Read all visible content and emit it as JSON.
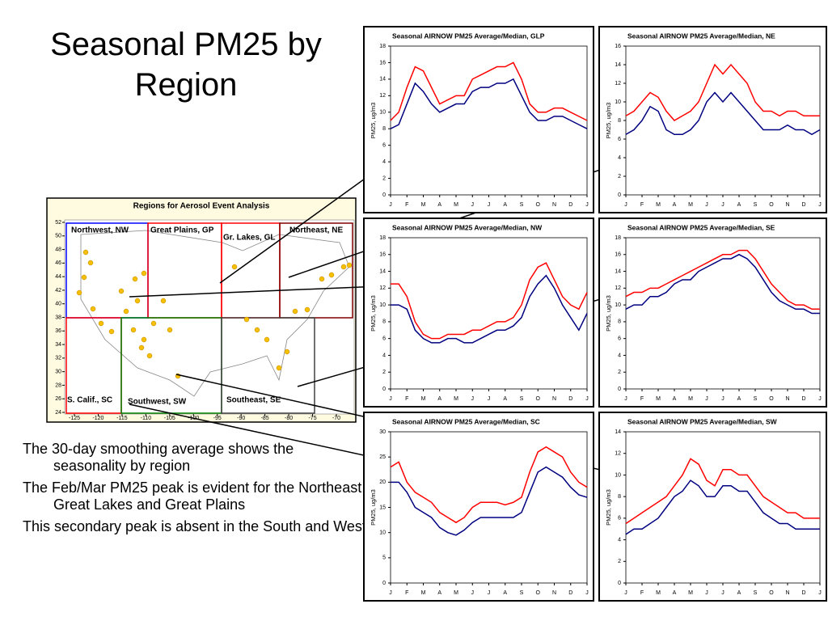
{
  "title": "Seasonal PM25 by Region",
  "bullets": [
    "The 30-day smoothing average shows the seasonality by region",
    "The Feb/Mar PM25 peak is evident for the Northeast, Great Lakes and Great Plains",
    "This secondary peak is absent in the South and West"
  ],
  "map": {
    "title": "Regions for Aerosol Event Analysis",
    "regions": [
      "Northwest, NW",
      "Great Plains, GP",
      "Gr. Lakes, GL",
      "Northeast, NE",
      "S. Calif., SC",
      "Southwest, SW",
      "Southeast, SE"
    ],
    "xticks": [
      -125,
      -120,
      -115,
      -110,
      -105,
      -100,
      -95,
      -90,
      -85,
      -80,
      -75,
      -70
    ],
    "yticks": [
      24,
      26,
      28,
      30,
      32,
      34,
      36,
      38,
      40,
      42,
      44,
      46,
      48,
      50,
      52
    ]
  },
  "chart_data": [
    {
      "type": "line",
      "title": "Seasonal AIRNOW PM25 Average/Median, GLP",
      "ylabel": "PM25, ug/m3",
      "x": [
        0,
        0.5,
        1,
        1.5,
        2,
        2.5,
        3,
        3.5,
        4,
        4.5,
        5,
        5.5,
        6,
        6.5,
        7,
        7.5,
        8,
        8.5,
        9,
        9.5,
        10,
        10.5,
        11,
        11.5,
        12
      ],
      "xlim": [
        0,
        12
      ],
      "ylim": [
        0,
        18
      ],
      "yticks": [
        0,
        2,
        4,
        6,
        8,
        10,
        12,
        14,
        16,
        18
      ],
      "xticks": [
        {
          "value": 0,
          "label": "J"
        },
        {
          "value": 1,
          "label": "F"
        },
        {
          "value": 2,
          "label": "M"
        },
        {
          "value": 3,
          "label": "A"
        },
        {
          "value": 4,
          "label": "M"
        },
        {
          "value": 5,
          "label": "J"
        },
        {
          "value": 6,
          "label": "J"
        },
        {
          "value": 7,
          "label": "A"
        },
        {
          "value": 8,
          "label": "S"
        },
        {
          "value": 9,
          "label": "O"
        },
        {
          "value": 10,
          "label": "N"
        },
        {
          "value": 11,
          "label": "D"
        },
        {
          "value": 12,
          "label": "J"
        }
      ],
      "series": [
        {
          "color": "#ff0000",
          "values": [
            9,
            10,
            13,
            15.5,
            15,
            13,
            11,
            11.5,
            12,
            12,
            14,
            14.5,
            15,
            15.5,
            15.5,
            16,
            14,
            11,
            10,
            10,
            10.5,
            10.5,
            10,
            9.5,
            9
          ]
        },
        {
          "color": "#000080",
          "values": [
            8,
            8.5,
            11,
            13.5,
            12.5,
            11,
            10,
            10.5,
            11,
            11,
            12.5,
            13,
            13,
            13.5,
            13.5,
            14,
            12,
            10,
            9,
            9,
            9.5,
            9.5,
            9,
            8.5,
            8
          ]
        }
      ]
    },
    {
      "type": "line",
      "title": "Seasonal AIRNOW PM25 Average/Median, NE",
      "ylabel": "PM25, ug/m3",
      "x": [
        0,
        0.5,
        1,
        1.5,
        2,
        2.5,
        3,
        3.5,
        4,
        4.5,
        5,
        5.5,
        6,
        6.5,
        7,
        7.5,
        8,
        8.5,
        9,
        9.5,
        10,
        10.5,
        11,
        11.5,
        12
      ],
      "xlim": [
        0,
        12
      ],
      "ylim": [
        0,
        16
      ],
      "yticks": [
        0,
        2,
        4,
        6,
        8,
        10,
        12,
        14,
        16
      ],
      "xticks": [
        {
          "value": 0,
          "label": "J"
        },
        {
          "value": 1,
          "label": "F"
        },
        {
          "value": 2,
          "label": "M"
        },
        {
          "value": 3,
          "label": "A"
        },
        {
          "value": 4,
          "label": "M"
        },
        {
          "value": 5,
          "label": "J"
        },
        {
          "value": 6,
          "label": "J"
        },
        {
          "value": 7,
          "label": "A"
        },
        {
          "value": 8,
          "label": "S"
        },
        {
          "value": 9,
          "label": "O"
        },
        {
          "value": 10,
          "label": "N"
        },
        {
          "value": 11,
          "label": "D"
        },
        {
          "value": 12,
          "label": "J"
        }
      ],
      "series": [
        {
          "color": "#ff0000",
          "values": [
            8.5,
            9,
            10,
            11,
            10.5,
            9,
            8,
            8.5,
            9,
            10,
            12,
            14,
            13,
            14,
            13,
            12,
            10,
            9,
            9,
            8.5,
            9,
            9,
            8.5,
            8.5,
            8.5
          ]
        },
        {
          "color": "#000080",
          "values": [
            6.5,
            7,
            8,
            9.5,
            9,
            7,
            6.5,
            6.5,
            7,
            8,
            10,
            11,
            10,
            11,
            10,
            9,
            8,
            7,
            7,
            7,
            7.5,
            7,
            7,
            6.5,
            7
          ]
        }
      ]
    },
    {
      "type": "line",
      "title": "Seasonal AIRNOW PM25 Average/Median, NW",
      "ylabel": "PM25, ug/m3",
      "x": [
        0,
        0.5,
        1,
        1.5,
        2,
        2.5,
        3,
        3.5,
        4,
        4.5,
        5,
        5.5,
        6,
        6.5,
        7,
        7.5,
        8,
        8.5,
        9,
        9.5,
        10,
        10.5,
        11,
        11.5,
        12
      ],
      "xlim": [
        0,
        12
      ],
      "ylim": [
        0,
        18
      ],
      "yticks": [
        0,
        2,
        4,
        6,
        8,
        10,
        12,
        14,
        16,
        18
      ],
      "xticks": [
        {
          "value": 0,
          "label": "J"
        },
        {
          "value": 1,
          "label": "F"
        },
        {
          "value": 2,
          "label": "M"
        },
        {
          "value": 3,
          "label": "A"
        },
        {
          "value": 4,
          "label": "M"
        },
        {
          "value": 5,
          "label": "J"
        },
        {
          "value": 6,
          "label": "J"
        },
        {
          "value": 7,
          "label": "A"
        },
        {
          "value": 8,
          "label": "S"
        },
        {
          "value": 9,
          "label": "O"
        },
        {
          "value": 10,
          "label": "N"
        },
        {
          "value": 11,
          "label": "D"
        },
        {
          "value": 12,
          "label": "J"
        }
      ],
      "series": [
        {
          "color": "#ff0000",
          "values": [
            12.5,
            12.5,
            11,
            8,
            6.5,
            6,
            6,
            6.5,
            6.5,
            6.5,
            7,
            7,
            7.5,
            8,
            8,
            8.5,
            10,
            13,
            14.5,
            15,
            13,
            11,
            10,
            9.5,
            11.5
          ]
        },
        {
          "color": "#000080",
          "values": [
            10,
            10,
            9.5,
            7,
            6,
            5.5,
            5.5,
            6,
            6,
            5.5,
            5.5,
            6,
            6.5,
            7,
            7,
            7.5,
            8.5,
            11,
            12.5,
            13.5,
            12,
            10,
            8.5,
            7,
            9
          ]
        }
      ]
    },
    {
      "type": "line",
      "title": "Seasonal AIRNOW PM25 Average/Median, SE",
      "ylabel": "PM25, ug/m3",
      "x": [
        0,
        0.5,
        1,
        1.5,
        2,
        2.5,
        3,
        3.5,
        4,
        4.5,
        5,
        5.5,
        6,
        6.5,
        7,
        7.5,
        8,
        8.5,
        9,
        9.5,
        10,
        10.5,
        11,
        11.5,
        12
      ],
      "xlim": [
        0,
        12
      ],
      "ylim": [
        0,
        18
      ],
      "yticks": [
        0,
        2,
        4,
        6,
        8,
        10,
        12,
        14,
        16,
        18
      ],
      "xticks": [
        {
          "value": 0,
          "label": "J"
        },
        {
          "value": 1,
          "label": "F"
        },
        {
          "value": 2,
          "label": "M"
        },
        {
          "value": 3,
          "label": "A"
        },
        {
          "value": 4,
          "label": "M"
        },
        {
          "value": 5,
          "label": "J"
        },
        {
          "value": 6,
          "label": "J"
        },
        {
          "value": 7,
          "label": "A"
        },
        {
          "value": 8,
          "label": "S"
        },
        {
          "value": 9,
          "label": "O"
        },
        {
          "value": 10,
          "label": "N"
        },
        {
          "value": 11,
          "label": "D"
        },
        {
          "value": 12,
          "label": "J"
        }
      ],
      "series": [
        {
          "color": "#ff0000",
          "values": [
            11,
            11.5,
            11.5,
            12,
            12,
            12.5,
            13,
            13.5,
            14,
            14.5,
            15,
            15.5,
            16,
            16,
            16.5,
            16.5,
            15.5,
            14,
            12.5,
            11.5,
            10.5,
            10,
            10,
            9.5,
            9.5
          ]
        },
        {
          "color": "#000080",
          "values": [
            9.5,
            10,
            10,
            11,
            11,
            11.5,
            12.5,
            13,
            13,
            14,
            14.5,
            15,
            15.5,
            15.5,
            16,
            15.5,
            14.5,
            13,
            11.5,
            10.5,
            10,
            9.5,
            9.5,
            9,
            9
          ]
        }
      ]
    },
    {
      "type": "line",
      "title": "Seasonal AIRNOW PM25 Average/Median, SC",
      "ylabel": "PM25, ug/m3",
      "x": [
        0,
        0.5,
        1,
        1.5,
        2,
        2.5,
        3,
        3.5,
        4,
        4.5,
        5,
        5.5,
        6,
        6.5,
        7,
        7.5,
        8,
        8.5,
        9,
        9.5,
        10,
        10.5,
        11,
        11.5,
        12
      ],
      "xlim": [
        0,
        12
      ],
      "ylim": [
        0,
        30
      ],
      "yticks": [
        0,
        5,
        10,
        15,
        20,
        25,
        30
      ],
      "xticks": [
        {
          "value": 0,
          "label": "J"
        },
        {
          "value": 1,
          "label": "F"
        },
        {
          "value": 2,
          "label": "M"
        },
        {
          "value": 3,
          "label": "A"
        },
        {
          "value": 4,
          "label": "M"
        },
        {
          "value": 5,
          "label": "J"
        },
        {
          "value": 6,
          "label": "J"
        },
        {
          "value": 7,
          "label": "A"
        },
        {
          "value": 8,
          "label": "S"
        },
        {
          "value": 9,
          "label": "O"
        },
        {
          "value": 10,
          "label": "N"
        },
        {
          "value": 11,
          "label": "D"
        },
        {
          "value": 12,
          "label": "J"
        }
      ],
      "series": [
        {
          "color": "#ff0000",
          "values": [
            23,
            24,
            20,
            18,
            17,
            16,
            14,
            13,
            12,
            13,
            15,
            16,
            16,
            16,
            15.5,
            16,
            17,
            22,
            26,
            27,
            26,
            25,
            22,
            20,
            19
          ]
        },
        {
          "color": "#000080",
          "values": [
            20,
            20,
            18,
            15,
            14,
            13,
            11,
            10,
            9.5,
            10.5,
            12,
            13,
            13,
            13,
            13,
            13,
            14,
            18,
            22,
            23,
            22,
            21,
            19,
            17.5,
            17
          ]
        }
      ]
    },
    {
      "type": "line",
      "title": "Seasonal AIRNOW PM25 Average/Median, SW",
      "ylabel": "PM25, ug/m3",
      "x": [
        0,
        0.5,
        1,
        1.5,
        2,
        2.5,
        3,
        3.5,
        4,
        4.5,
        5,
        5.5,
        6,
        6.5,
        7,
        7.5,
        8,
        8.5,
        9,
        9.5,
        10,
        10.5,
        11,
        11.5,
        12
      ],
      "xlim": [
        0,
        12
      ],
      "ylim": [
        0,
        14
      ],
      "yticks": [
        0,
        2,
        4,
        6,
        8,
        10,
        12,
        14
      ],
      "xticks": [
        {
          "value": 0,
          "label": "J"
        },
        {
          "value": 1,
          "label": "F"
        },
        {
          "value": 2,
          "label": "M"
        },
        {
          "value": 3,
          "label": "A"
        },
        {
          "value": 4,
          "label": "M"
        },
        {
          "value": 5,
          "label": "J"
        },
        {
          "value": 6,
          "label": "J"
        },
        {
          "value": 7,
          "label": "A"
        },
        {
          "value": 8,
          "label": "S"
        },
        {
          "value": 9,
          "label": "O"
        },
        {
          "value": 10,
          "label": "N"
        },
        {
          "value": 11,
          "label": "D"
        },
        {
          "value": 12,
          "label": "J"
        }
      ],
      "series": [
        {
          "color": "#ff0000",
          "values": [
            5.5,
            6,
            6.5,
            7,
            7.5,
            8,
            9,
            10,
            11.5,
            11,
            9.5,
            9,
            10.5,
            10.5,
            10,
            10,
            9,
            8,
            7.5,
            7,
            6.5,
            6.5,
            6,
            6,
            6
          ]
        },
        {
          "color": "#000080",
          "values": [
            4.5,
            5,
            5,
            5.5,
            6,
            7,
            8,
            8.5,
            9.5,
            9,
            8,
            8,
            9,
            9,
            8.5,
            8.5,
            7.5,
            6.5,
            6,
            5.5,
            5.5,
            5,
            5,
            5,
            5
          ]
        }
      ]
    }
  ]
}
